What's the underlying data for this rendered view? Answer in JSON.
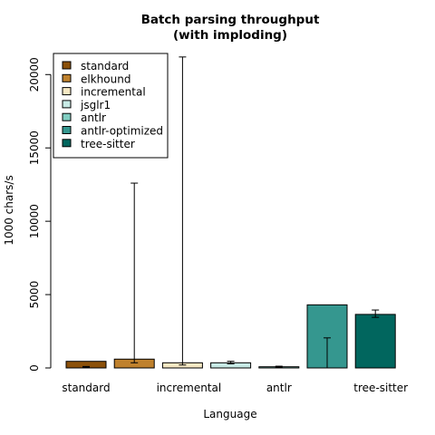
{
  "chart_data": {
    "type": "bar",
    "title_lines": [
      "Batch parsing throughput",
      "(with imploding)"
    ],
    "xlabel": "Language",
    "ylabel": "1000 chars/s",
    "ylim": [
      0,
      21500
    ],
    "yticks": [
      0,
      5000,
      10000,
      15000,
      20000
    ],
    "x_tick_labels": [
      "standard",
      "incremental",
      "antlr",
      "tree-sitter"
    ],
    "legend_position": "top-left",
    "series": [
      {
        "name": "standard",
        "color": "#8c510a",
        "value": 450,
        "err_low": 50,
        "err_high": 100
      },
      {
        "name": "elkhound",
        "color": "#bf812d",
        "value": 600,
        "err_low": 350,
        "err_high": 12600
      },
      {
        "name": "incremental",
        "color": "#f6e8c3",
        "value": 350,
        "err_low": 200,
        "err_high": 21200
      },
      {
        "name": "jsglr1",
        "color": "#c7eae5",
        "value": 350,
        "err_low": 280,
        "err_high": 450
      },
      {
        "name": "antlr",
        "color": "#80cdc1",
        "value": 80,
        "err_low": 30,
        "err_high": 120
      },
      {
        "name": "antlr-optimized",
        "color": "#35978f",
        "value": 4300,
        "err_low": 0,
        "err_high": 2050
      },
      {
        "name": "tree-sitter",
        "color": "#01665e",
        "value": 3650,
        "err_low": 3450,
        "err_high": 3950
      }
    ]
  }
}
